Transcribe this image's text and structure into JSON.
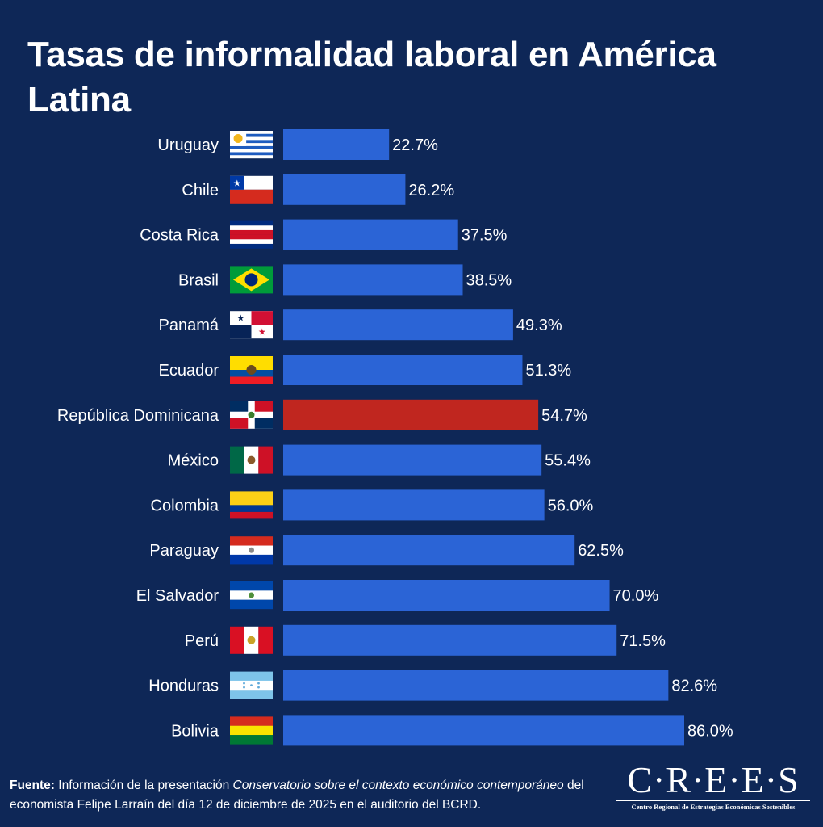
{
  "title": "Tasas de informalidad laboral en América Latina",
  "chart_data": {
    "type": "bar",
    "orientation": "horizontal",
    "title": "Tasas de informalidad laboral en América Latina",
    "xlabel": "",
    "ylabel": "",
    "xlim": [
      0,
      86
    ],
    "grid": false,
    "categories": [
      "Uruguay",
      "Chile",
      "Costa Rica",
      "Brasil",
      "Panamá",
      "Ecuador",
      "República Dominicana",
      "México",
      "Colombia",
      "Paraguay",
      "El Salvador",
      "Perú",
      "Honduras",
      "Bolivia"
    ],
    "values": [
      22.7,
      26.2,
      37.5,
      38.5,
      49.3,
      51.3,
      54.7,
      55.4,
      56.0,
      62.5,
      70.0,
      71.5,
      82.6,
      86.0
    ],
    "value_labels": [
      "22.7%",
      "26.2%",
      "37.5%",
      "38.5%",
      "49.3%",
      "51.3%",
      "54.7%",
      "55.4%",
      "56.0%",
      "62.5%",
      "70.0%",
      "71.5%",
      "82.6%",
      "86.0%"
    ],
    "highlight_category": "República Dominicana",
    "flag_icons": [
      "flag-uruguay-icon",
      "flag-chile-icon",
      "flag-costa-rica-icon",
      "flag-brasil-icon",
      "flag-panama-icon",
      "flag-ecuador-icon",
      "flag-republica-dominicana-icon",
      "flag-mexico-icon",
      "flag-colombia-icon",
      "flag-paraguay-icon",
      "flag-el-salvador-icon",
      "flag-peru-icon",
      "flag-honduras-icon",
      "flag-bolivia-icon"
    ],
    "colors": {
      "bar": "#2b64d6",
      "highlight": "#c0261f",
      "background": "#0e2757",
      "text": "#ffffff"
    }
  },
  "footer": {
    "source_label": "Fuente:",
    "text_before": " Información de la presentación ",
    "italic_title": "Conservatorio sobre el contexto económico contemporáneo",
    "text_after": " del economista Felipe Larraín del día 12 de diciembre de 2025 en el auditorio del BCRD."
  },
  "logo": {
    "wordmark": "C·R·E·E·S",
    "subtitle": "Centro Regional de Estrategias Económicas Sostenibles"
  }
}
